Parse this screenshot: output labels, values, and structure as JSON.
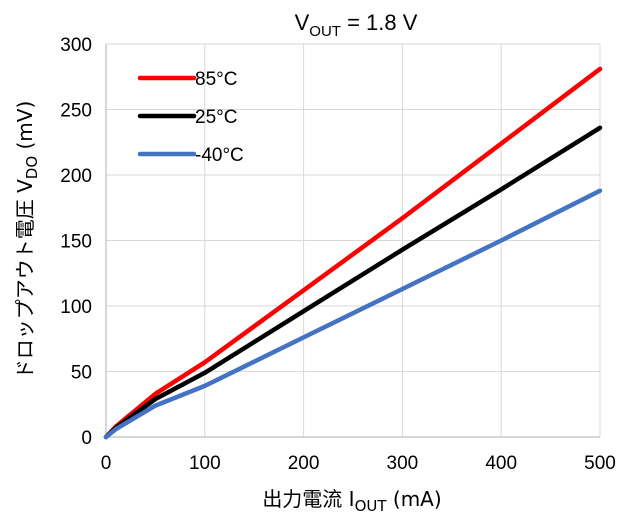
{
  "chart_data": {
    "type": "line",
    "title": {
      "main": "V",
      "sub": "OUT",
      "suffix": " = 1.8 V"
    },
    "xlabel": {
      "main": "出力電流 I",
      "sub": "OUT",
      "suffix": " (mA)"
    },
    "ylabel": {
      "main": "ドロップアウト電圧 V",
      "sub": "DO",
      "suffix": " (mV)"
    },
    "xlim": [
      0,
      500
    ],
    "ylim": [
      0,
      300
    ],
    "xticks": [
      0,
      100,
      200,
      300,
      400,
      500
    ],
    "yticks": [
      0,
      50,
      100,
      150,
      200,
      250,
      300
    ],
    "grid": true,
    "legend_position": "top-left",
    "series": [
      {
        "name": "85°C",
        "color": "#ff0000",
        "x": [
          0,
          10,
          50,
          100,
          200,
          300,
          400,
          500
        ],
        "y": [
          0,
          8,
          33,
          57,
          112,
          167,
          224,
          281
        ]
      },
      {
        "name": "25°C",
        "color": "#000000",
        "x": [
          0,
          10,
          50,
          100,
          200,
          300,
          400,
          500
        ],
        "y": [
          0,
          7,
          29,
          49,
          96,
          143,
          189,
          236
        ]
      },
      {
        "name": "-40°C",
        "color": "#4472c4",
        "x": [
          0,
          10,
          50,
          100,
          200,
          300,
          400,
          500
        ],
        "y": [
          0,
          6,
          24,
          39,
          76,
          113,
          150,
          188
        ]
      }
    ]
  }
}
